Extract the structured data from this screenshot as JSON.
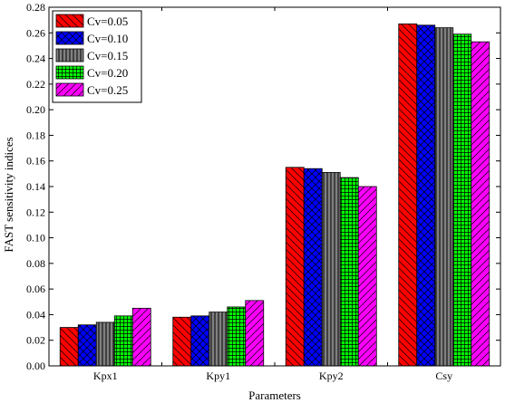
{
  "chart_data": {
    "type": "bar",
    "xlabel": "Parameters",
    "ylabel": "FAST sensitivity indices",
    "ylim": [
      0,
      0.28
    ],
    "ytick_step": 0.02,
    "ytick_labels": [
      "0.00",
      "0.02",
      "0.04",
      "0.06",
      "0.08",
      "0.10",
      "0.12",
      "0.14",
      "0.16",
      "0.18",
      "0.20",
      "0.22",
      "0.24",
      "0.26",
      "0.28"
    ],
    "categories": [
      "Kpx1",
      "Kpy1",
      "Kpy2",
      "Csy"
    ],
    "grid": false,
    "legend_position": "top-left",
    "series": [
      {
        "name": "Cv=0.05",
        "color": "#ff0000",
        "pattern": "diag-back",
        "values": [
          0.03,
          0.038,
          0.155,
          0.267
        ]
      },
      {
        "name": "Cv=0.10",
        "color": "#0000ff",
        "pattern": "cross-hatch",
        "values": [
          0.032,
          0.039,
          0.154,
          0.266
        ]
      },
      {
        "name": "Cv=0.15",
        "color": "#808080",
        "pattern": "vertical",
        "values": [
          0.034,
          0.042,
          0.151,
          0.264
        ]
      },
      {
        "name": "Cv=0.20",
        "color": "#00ff00",
        "pattern": "grid",
        "values": [
          0.039,
          0.046,
          0.147,
          0.259
        ]
      },
      {
        "name": "Cv=0.25",
        "color": "#ff00ff",
        "pattern": "diag-forward",
        "values": [
          0.045,
          0.051,
          0.14,
          0.253
        ]
      }
    ]
  }
}
